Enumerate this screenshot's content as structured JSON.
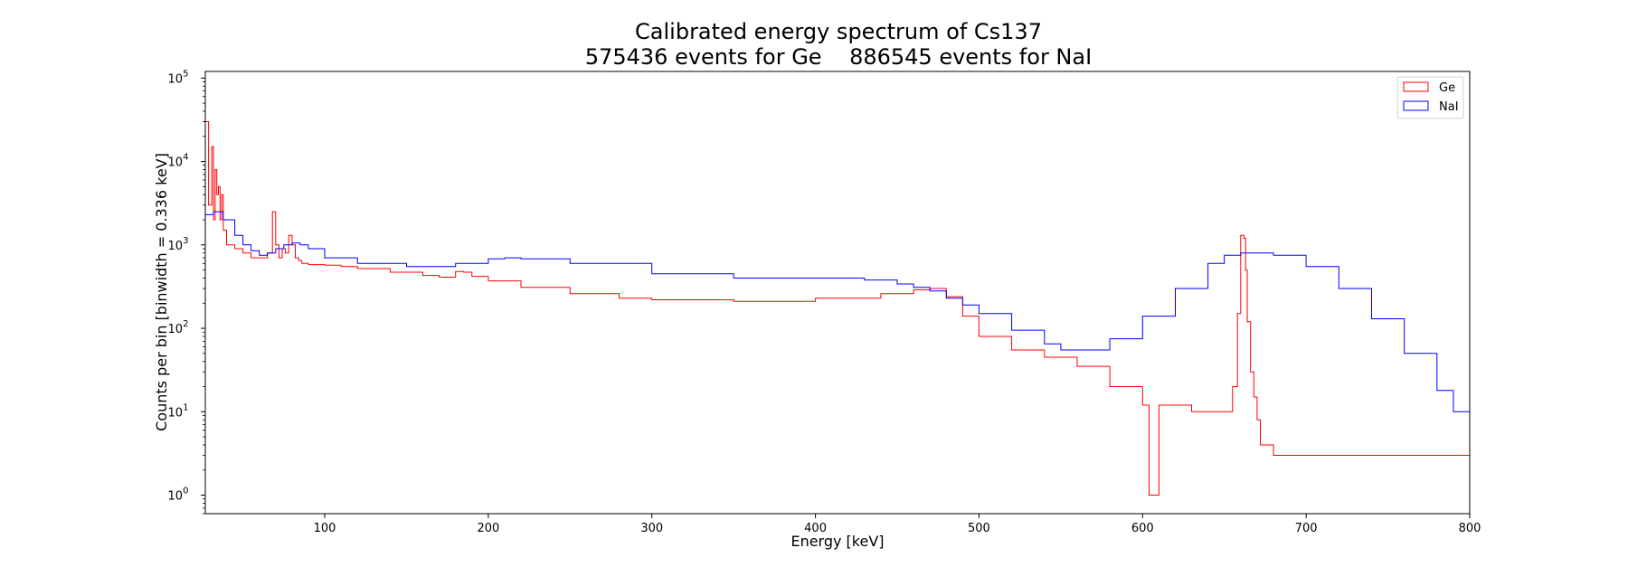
{
  "chart_data": {
    "type": "line",
    "title": "Calibrated energy spectrum of Cs137",
    "subtitle": "575436 events for Ge    886545 events for NaI",
    "xlabel": "Energy [keV]",
    "ylabel": "Counts per bin [binwidth = 0.336 keV]",
    "xscale": "linear",
    "yscale": "log",
    "xlim": [
      27,
      800
    ],
    "ylim": [
      0.6,
      120000
    ],
    "grid": false,
    "legend_position": "top-right",
    "xticks": [
      100,
      200,
      300,
      400,
      500,
      600,
      700,
      800
    ],
    "yticks": [
      {
        "value": 1,
        "base": "10",
        "exp": "0"
      },
      {
        "value": 10,
        "base": "10",
        "exp": "1"
      },
      {
        "value": 100,
        "base": "10",
        "exp": "2"
      },
      {
        "value": 1000,
        "base": "10",
        "exp": "3"
      },
      {
        "value": 10000,
        "base": "10",
        "exp": "4"
      },
      {
        "value": 100000,
        "base": "10",
        "exp": "5"
      }
    ],
    "series": [
      {
        "name": "Ge",
        "color": "#ff0000",
        "x": [
          27,
          29,
          31,
          32,
          33,
          34,
          35,
          36,
          37,
          38,
          40,
          45,
          50,
          55,
          60,
          65,
          68,
          70,
          72,
          74,
          76,
          78,
          80,
          82,
          84,
          86,
          90,
          100,
          110,
          120,
          140,
          160,
          170,
          180,
          185,
          190,
          200,
          220,
          250,
          280,
          300,
          350,
          400,
          440,
          460,
          470,
          480,
          490,
          500,
          520,
          540,
          560,
          580,
          600,
          604,
          610,
          630,
          650,
          655,
          658,
          660,
          662,
          663,
          664,
          666,
          668,
          670,
          672,
          680,
          700,
          720,
          740,
          760,
          780,
          800
        ],
        "y": [
          30000,
          3000,
          15000,
          2000,
          8000,
          4000,
          5000,
          2000,
          4000,
          1500,
          1000,
          900,
          800,
          700,
          700,
          800,
          2500,
          1000,
          700,
          900,
          800,
          1300,
          1000,
          700,
          650,
          600,
          580,
          570,
          550,
          520,
          470,
          430,
          410,
          480,
          470,
          420,
          370,
          310,
          260,
          230,
          220,
          210,
          230,
          260,
          290,
          300,
          240,
          140,
          80,
          55,
          45,
          35,
          20,
          12,
          1,
          12,
          10,
          10,
          20,
          150,
          1300,
          1200,
          500,
          120,
          30,
          15,
          8,
          4,
          3,
          3,
          3,
          3,
          3,
          3,
          2
        ]
      },
      {
        "name": "NaI",
        "color": "#0000ff",
        "x": [
          27,
          32,
          38,
          45,
          50,
          55,
          60,
          65,
          70,
          75,
          80,
          85,
          90,
          100,
          120,
          150,
          180,
          200,
          210,
          220,
          250,
          300,
          350,
          400,
          430,
          450,
          460,
          470,
          480,
          490,
          500,
          520,
          540,
          550,
          560,
          580,
          600,
          620,
          640,
          650,
          660,
          670,
          680,
          700,
          720,
          740,
          760,
          780,
          790,
          800
        ],
        "y": [
          2300,
          2500,
          2000,
          1300,
          1000,
          850,
          750,
          800,
          900,
          1000,
          1050,
          1000,
          900,
          700,
          600,
          550,
          600,
          680,
          700,
          680,
          600,
          450,
          400,
          400,
          380,
          340,
          310,
          280,
          230,
          190,
          150,
          95,
          65,
          55,
          55,
          75,
          140,
          300,
          600,
          750,
          800,
          800,
          750,
          550,
          300,
          130,
          50,
          18,
          10,
          5
        ]
      }
    ]
  }
}
